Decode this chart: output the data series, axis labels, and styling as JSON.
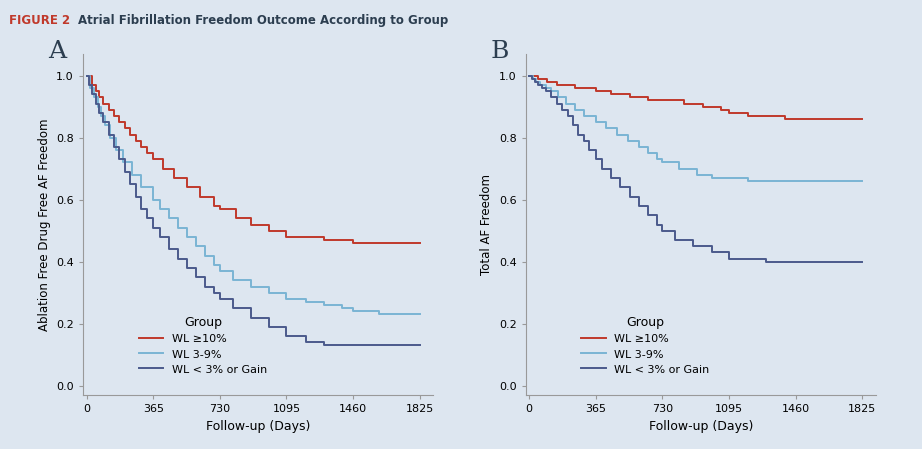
{
  "figure_title_red": "FIGURE 2",
  "figure_title_black": "Atrial Fibrillation Freedom Outcome According to Group",
  "background_color": "#dde6f0",
  "fig_background": "#dde6f0",
  "header_background": "#c8d8e8",
  "panel_A_label": "A",
  "panel_B_label": "B",
  "ylabel_A": "Ablation Free Drug Free AF Freedom",
  "ylabel_B": "Total AF Freedom",
  "xlabel": "Follow-up (Days)",
  "xticks": [
    0,
    365,
    730,
    1095,
    1460,
    1825
  ],
  "yticks": [
    0.0,
    0.2,
    0.4,
    0.6,
    0.8,
    1.0
  ],
  "legend_title": "Group",
  "legend_labels": [
    "WL ≥10%",
    "WL 3-9%",
    "WL < 3% or Gain"
  ],
  "colors": [
    "#c0392b",
    "#7ab4d4",
    "#4a5a8c"
  ],
  "panel_A": {
    "wl10_x": [
      0,
      30,
      50,
      70,
      90,
      120,
      150,
      180,
      210,
      240,
      270,
      300,
      330,
      365,
      420,
      480,
      550,
      620,
      700,
      730,
      820,
      900,
      1000,
      1095,
      1200,
      1300,
      1400,
      1460,
      1600,
      1700,
      1825
    ],
    "wl10_y": [
      1.0,
      0.97,
      0.95,
      0.93,
      0.91,
      0.89,
      0.87,
      0.85,
      0.83,
      0.81,
      0.79,
      0.77,
      0.75,
      0.73,
      0.7,
      0.67,
      0.64,
      0.61,
      0.58,
      0.57,
      0.54,
      0.52,
      0.5,
      0.48,
      0.48,
      0.47,
      0.47,
      0.46,
      0.46,
      0.46,
      0.46
    ],
    "wl39_x": [
      0,
      20,
      40,
      60,
      80,
      100,
      130,
      160,
      200,
      250,
      300,
      365,
      400,
      450,
      500,
      550,
      600,
      650,
      700,
      730,
      800,
      900,
      1000,
      1095,
      1200,
      1300,
      1400,
      1460,
      1600,
      1700,
      1825
    ],
    "wl39_y": [
      1.0,
      0.96,
      0.93,
      0.9,
      0.87,
      0.84,
      0.8,
      0.76,
      0.72,
      0.68,
      0.64,
      0.6,
      0.57,
      0.54,
      0.51,
      0.48,
      0.45,
      0.42,
      0.39,
      0.37,
      0.34,
      0.32,
      0.3,
      0.28,
      0.27,
      0.26,
      0.25,
      0.24,
      0.23,
      0.23,
      0.23
    ],
    "wlgain_x": [
      0,
      15,
      30,
      50,
      70,
      90,
      120,
      150,
      180,
      210,
      240,
      270,
      300,
      330,
      365,
      400,
      450,
      500,
      550,
      600,
      650,
      700,
      730,
      800,
      900,
      1000,
      1095,
      1200,
      1300,
      1400,
      1460,
      1600,
      1825
    ],
    "wlgain_y": [
      1.0,
      0.97,
      0.94,
      0.91,
      0.88,
      0.85,
      0.81,
      0.77,
      0.73,
      0.69,
      0.65,
      0.61,
      0.57,
      0.54,
      0.51,
      0.48,
      0.44,
      0.41,
      0.38,
      0.35,
      0.32,
      0.3,
      0.28,
      0.25,
      0.22,
      0.19,
      0.16,
      0.14,
      0.13,
      0.13,
      0.13,
      0.13,
      0.13
    ]
  },
  "panel_B": {
    "wl10_x": [
      0,
      50,
      100,
      150,
      200,
      250,
      300,
      365,
      450,
      550,
      650,
      730,
      850,
      950,
      1050,
      1095,
      1200,
      1300,
      1400,
      1460,
      1600,
      1825
    ],
    "wl10_y": [
      1.0,
      0.99,
      0.98,
      0.97,
      0.97,
      0.96,
      0.96,
      0.95,
      0.94,
      0.93,
      0.92,
      0.92,
      0.91,
      0.9,
      0.89,
      0.88,
      0.87,
      0.87,
      0.86,
      0.86,
      0.86,
      0.86
    ],
    "wl39_x": [
      0,
      20,
      40,
      60,
      90,
      120,
      160,
      200,
      250,
      300,
      365,
      420,
      480,
      540,
      600,
      650,
      700,
      730,
      820,
      920,
      1000,
      1095,
      1200,
      1300,
      1400,
      1460,
      1600,
      1825
    ],
    "wl39_y": [
      1.0,
      0.99,
      0.98,
      0.97,
      0.96,
      0.95,
      0.93,
      0.91,
      0.89,
      0.87,
      0.85,
      0.83,
      0.81,
      0.79,
      0.77,
      0.75,
      0.73,
      0.72,
      0.7,
      0.68,
      0.67,
      0.67,
      0.66,
      0.66,
      0.66,
      0.66,
      0.66,
      0.66
    ],
    "wlgain_x": [
      0,
      15,
      30,
      50,
      70,
      90,
      120,
      150,
      180,
      210,
      240,
      270,
      300,
      330,
      365,
      400,
      450,
      500,
      550,
      600,
      650,
      700,
      730,
      800,
      900,
      1000,
      1095,
      1200,
      1300,
      1400,
      1460,
      1600,
      1825
    ],
    "wlgain_y": [
      1.0,
      0.99,
      0.98,
      0.97,
      0.96,
      0.95,
      0.93,
      0.91,
      0.89,
      0.87,
      0.84,
      0.81,
      0.79,
      0.76,
      0.73,
      0.7,
      0.67,
      0.64,
      0.61,
      0.58,
      0.55,
      0.52,
      0.5,
      0.47,
      0.45,
      0.43,
      0.41,
      0.41,
      0.4,
      0.4,
      0.4,
      0.4,
      0.4
    ]
  }
}
